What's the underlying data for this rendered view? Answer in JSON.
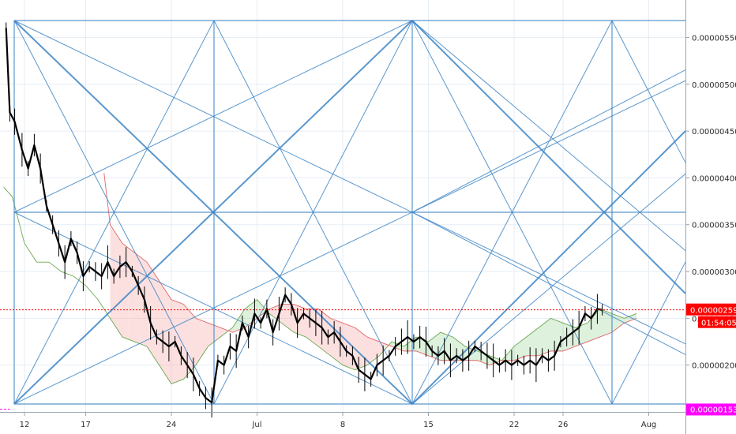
{
  "chart_data": {
    "type": "candlestick",
    "y_ticks": [
      "0.00000550",
      "0.00000500",
      "0.00000450",
      "0.00000400",
      "0.00000350",
      "0.00000300",
      "0.00000250",
      "0.00000200"
    ],
    "y_tick_values": [
      5.5,
      5.0,
      4.5,
      4.0,
      3.5,
      3.0,
      2.5,
      2.0
    ],
    "ylim": [
      1.5,
      5.9
    ],
    "x_ticks": [
      "12",
      "17",
      "24",
      "Jul",
      "8",
      "15",
      "22",
      "26",
      "Aug"
    ],
    "x_tick_days": [
      2,
      7,
      14,
      21,
      28,
      35,
      42,
      46,
      53
    ],
    "xlim": [
      0,
      56
    ],
    "last_price": {
      "label": "0.00000259",
      "value": 2.59,
      "color": "#ff0000"
    },
    "countdown": {
      "label": "01:54:05",
      "color": "#ff0000"
    },
    "low_marker": {
      "label": "0.00000153",
      "value": 1.53,
      "color": "#ff00ff"
    },
    "price_series": [
      [
        0.5,
        5.6
      ],
      [
        0.8,
        4.7
      ],
      [
        1.2,
        4.6
      ],
      [
        1.8,
        4.3
      ],
      [
        2.3,
        4.1
      ],
      [
        2.8,
        4.35
      ],
      [
        3.3,
        4.1
      ],
      [
        3.8,
        3.7
      ],
      [
        4.3,
        3.5
      ],
      [
        4.8,
        3.3
      ],
      [
        5.3,
        3.1
      ],
      [
        5.8,
        3.35
      ],
      [
        6.3,
        3.2
      ],
      [
        6.8,
        2.95
      ],
      [
        7.3,
        3.05
      ],
      [
        7.8,
        3.0
      ],
      [
        8.3,
        2.95
      ],
      [
        8.8,
        3.1
      ],
      [
        9.3,
        2.95
      ],
      [
        9.8,
        3.05
      ],
      [
        10.3,
        3.1
      ],
      [
        10.8,
        3.0
      ],
      [
        11.3,
        2.85
      ],
      [
        11.8,
        2.7
      ],
      [
        12.3,
        2.45
      ],
      [
        12.8,
        2.3
      ],
      [
        13.3,
        2.25
      ],
      [
        13.8,
        2.2
      ],
      [
        14.3,
        2.25
      ],
      [
        14.8,
        2.1
      ],
      [
        15.3,
        2.0
      ],
      [
        15.8,
        1.9
      ],
      [
        16.3,
        1.75
      ],
      [
        16.8,
        1.65
      ],
      [
        17.3,
        1.6
      ],
      [
        17.8,
        2.05
      ],
      [
        18.3,
        2.0
      ],
      [
        18.8,
        2.2
      ],
      [
        19.3,
        2.15
      ],
      [
        19.8,
        2.45
      ],
      [
        20.3,
        2.3
      ],
      [
        20.8,
        2.55
      ],
      [
        21.3,
        2.45
      ],
      [
        21.8,
        2.6
      ],
      [
        22.3,
        2.35
      ],
      [
        22.8,
        2.55
      ],
      [
        23.3,
        2.75
      ],
      [
        23.8,
        2.65
      ],
      [
        24.3,
        2.45
      ],
      [
        24.8,
        2.55
      ],
      [
        25.3,
        2.5
      ],
      [
        25.8,
        2.45
      ],
      [
        26.3,
        2.4
      ],
      [
        26.8,
        2.3
      ],
      [
        27.3,
        2.35
      ],
      [
        27.8,
        2.25
      ],
      [
        28.3,
        2.15
      ],
      [
        28.8,
        2.1
      ],
      [
        29.3,
        1.95
      ],
      [
        29.8,
        1.9
      ],
      [
        30.3,
        1.85
      ],
      [
        30.8,
        2.0
      ],
      [
        31.3,
        2.05
      ],
      [
        31.8,
        2.1
      ],
      [
        32.3,
        2.2
      ],
      [
        32.8,
        2.25
      ],
      [
        33.3,
        2.3
      ],
      [
        33.8,
        2.25
      ],
      [
        34.3,
        2.3
      ],
      [
        34.8,
        2.25
      ],
      [
        35.3,
        2.15
      ],
      [
        35.8,
        2.1
      ],
      [
        36.3,
        2.15
      ],
      [
        36.8,
        2.05
      ],
      [
        37.3,
        2.1
      ],
      [
        37.8,
        2.05
      ],
      [
        38.3,
        2.1
      ],
      [
        38.8,
        2.2
      ],
      [
        39.3,
        2.15
      ],
      [
        39.8,
        2.1
      ],
      [
        40.3,
        2.05
      ],
      [
        40.8,
        2.0
      ],
      [
        41.3,
        2.05
      ],
      [
        41.8,
        2.0
      ],
      [
        42.3,
        2.05
      ],
      [
        42.8,
        2.0
      ],
      [
        43.3,
        2.05
      ],
      [
        43.8,
        2.0
      ],
      [
        44.3,
        2.1
      ],
      [
        44.8,
        2.05
      ],
      [
        45.3,
        2.1
      ],
      [
        45.8,
        2.25
      ],
      [
        46.3,
        2.3
      ],
      [
        46.8,
        2.35
      ],
      [
        47.3,
        2.4
      ],
      [
        47.8,
        2.55
      ],
      [
        48.3,
        2.5
      ],
      [
        48.8,
        2.6
      ],
      [
        49.2,
        2.59
      ]
    ],
    "cloud_line_green": [
      [
        0.3,
        3.9
      ],
      [
        1.0,
        3.8
      ],
      [
        2.0,
        3.3
      ],
      [
        3.0,
        3.1
      ],
      [
        4.0,
        3.1
      ],
      [
        5.0,
        3.0
      ],
      [
        6.0,
        2.95
      ],
      [
        7.0,
        2.85
      ],
      [
        8.0,
        2.7
      ],
      [
        9.0,
        2.5
      ],
      [
        10.0,
        2.3
      ],
      [
        11.0,
        2.25
      ],
      [
        12.0,
        2.2
      ],
      [
        13.0,
        2.0
      ],
      [
        14.0,
        1.8
      ],
      [
        15.0,
        1.85
      ],
      [
        16.0,
        2.0
      ],
      [
        17.0,
        2.2
      ],
      [
        18.0,
        2.3
      ],
      [
        19.0,
        2.4
      ],
      [
        20.0,
        2.6
      ],
      [
        21.0,
        2.7
      ],
      [
        22.0,
        2.55
      ],
      [
        23.0,
        2.45
      ],
      [
        24.0,
        2.35
      ],
      [
        25.0,
        2.3
      ],
      [
        26.0,
        2.2
      ],
      [
        27.0,
        2.1
      ],
      [
        28.0,
        2.0
      ],
      [
        29.0,
        1.95
      ],
      [
        30.0,
        2.0
      ],
      [
        31.0,
        2.1
      ],
      [
        32.0,
        2.25
      ],
      [
        33.0,
        2.2
      ],
      [
        34.0,
        2.3
      ],
      [
        35.0,
        2.25
      ],
      [
        36.0,
        2.35
      ],
      [
        37.0,
        2.3
      ],
      [
        38.0,
        2.2
      ],
      [
        39.0,
        2.15
      ],
      [
        40.0,
        2.1
      ],
      [
        41.0,
        2.05
      ],
      [
        42.0,
        2.2
      ],
      [
        43.0,
        2.3
      ],
      [
        44.0,
        2.4
      ],
      [
        45.0,
        2.5
      ],
      [
        46.0,
        2.45
      ],
      [
        47.0,
        2.4
      ],
      [
        48.0,
        2.45
      ],
      [
        49.0,
        2.6
      ],
      [
        50.0,
        2.55
      ],
      [
        51.0,
        2.5
      ],
      [
        52.0,
        2.55
      ]
    ],
    "cloud_line_red": [
      [
        8.5,
        4.05
      ],
      [
        9.0,
        3.5
      ],
      [
        10.0,
        3.3
      ],
      [
        11.0,
        3.2
      ],
      [
        12.0,
        3.1
      ],
      [
        13.0,
        2.9
      ],
      [
        14.0,
        2.7
      ],
      [
        15.0,
        2.65
      ],
      [
        16.0,
        2.5
      ],
      [
        17.0,
        2.45
      ],
      [
        18.0,
        2.4
      ],
      [
        19.0,
        2.35
      ],
      [
        20.0,
        2.4
      ],
      [
        21.0,
        2.5
      ],
      [
        22.0,
        2.6
      ],
      [
        23.0,
        2.65
      ],
      [
        24.0,
        2.65
      ],
      [
        25.0,
        2.6
      ],
      [
        26.0,
        2.6
      ],
      [
        27.0,
        2.5
      ],
      [
        28.0,
        2.45
      ],
      [
        29.0,
        2.4
      ],
      [
        30.0,
        2.3
      ],
      [
        31.0,
        2.25
      ],
      [
        32.0,
        2.2
      ],
      [
        33.0,
        2.15
      ],
      [
        34.0,
        2.15
      ],
      [
        35.0,
        2.1
      ],
      [
        36.0,
        2.05
      ],
      [
        37.0,
        2.05
      ],
      [
        38.0,
        2.05
      ],
      [
        39.0,
        2.05
      ],
      [
        40.0,
        2.0
      ],
      [
        41.0,
        2.05
      ],
      [
        42.0,
        2.05
      ],
      [
        43.0,
        2.1
      ],
      [
        44.0,
        2.1
      ],
      [
        45.0,
        2.15
      ],
      [
        46.0,
        2.15
      ],
      [
        47.0,
        2.2
      ],
      [
        48.0,
        2.25
      ],
      [
        49.0,
        2.3
      ],
      [
        50.0,
        2.35
      ],
      [
        51.0,
        2.45
      ],
      [
        52.0,
        2.5
      ]
    ],
    "series_colors": {
      "price": "#000000",
      "green": "#6aa84f",
      "red": "#e06666",
      "cloud_red_fill": "rgba(244,143,143,0.28)",
      "cloud_green_fill": "rgba(120,200,120,0.25)",
      "gann": "#3d85c6",
      "grid": "#e6edf5"
    }
  }
}
